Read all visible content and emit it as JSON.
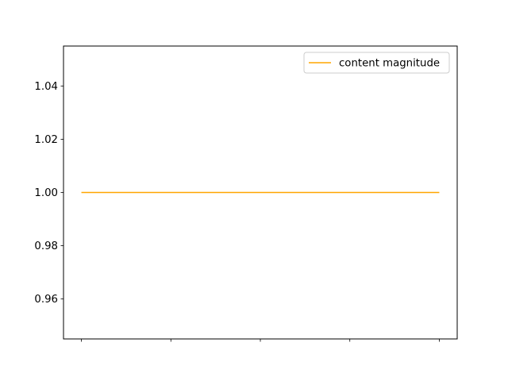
{
  "chart_data": {
    "type": "line",
    "title": "",
    "xlabel": "",
    "ylabel": "",
    "x": [
      0,
      1,
      2,
      3,
      4
    ],
    "xticks_labeled": false,
    "xlim": [
      -0.2,
      4.2
    ],
    "ylim": [
      0.945,
      1.055
    ],
    "yticks": [
      0.96,
      0.98,
      1.0,
      1.02,
      1.04
    ],
    "ytick_labels": [
      "0.96",
      "0.98",
      "1.00",
      "1.02",
      "1.04"
    ],
    "grid": false,
    "legend_position": "top-right",
    "series": [
      {
        "name": "content magnitude",
        "color": "#ffa500",
        "values": [
          1,
          1,
          1,
          1,
          1
        ]
      }
    ]
  }
}
